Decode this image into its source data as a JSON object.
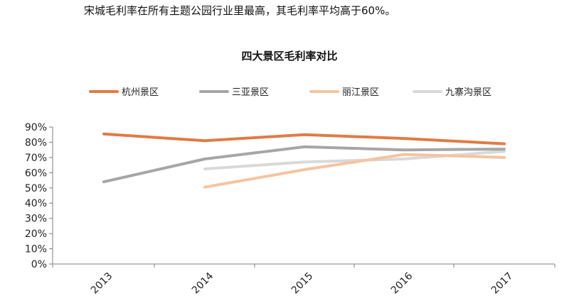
{
  "intro_text": "宋城毛利率在所有主题公园行业里最高，其毛利率平均高于60%。",
  "chart_data": {
    "type": "line",
    "title": "四大景区毛利率对比",
    "xlabel": "",
    "ylabel": "",
    "categories": [
      "2013",
      "2014",
      "2015",
      "2016",
      "2017"
    ],
    "ylim": [
      0,
      90
    ],
    "yticks": [
      "0%",
      "10%",
      "20%",
      "30%",
      "40%",
      "50%",
      "60%",
      "70%",
      "80%",
      "90%"
    ],
    "grid": false,
    "legend_position": "top",
    "series": [
      {
        "name": "杭州景区",
        "color": "#E07B45",
        "values": [
          85.5,
          81,
          85,
          82.5,
          79
        ]
      },
      {
        "name": "三亚景区",
        "color": "#A6A6A6",
        "values": [
          54,
          69,
          77,
          75,
          75.5
        ]
      },
      {
        "name": "丽江景区",
        "color": "#F5C4A0",
        "values": [
          null,
          50.5,
          62,
          72,
          70
        ]
      },
      {
        "name": "九寨沟景区",
        "color": "#D9D9D9",
        "values": [
          null,
          62.5,
          67,
          69,
          74
        ]
      }
    ]
  }
}
